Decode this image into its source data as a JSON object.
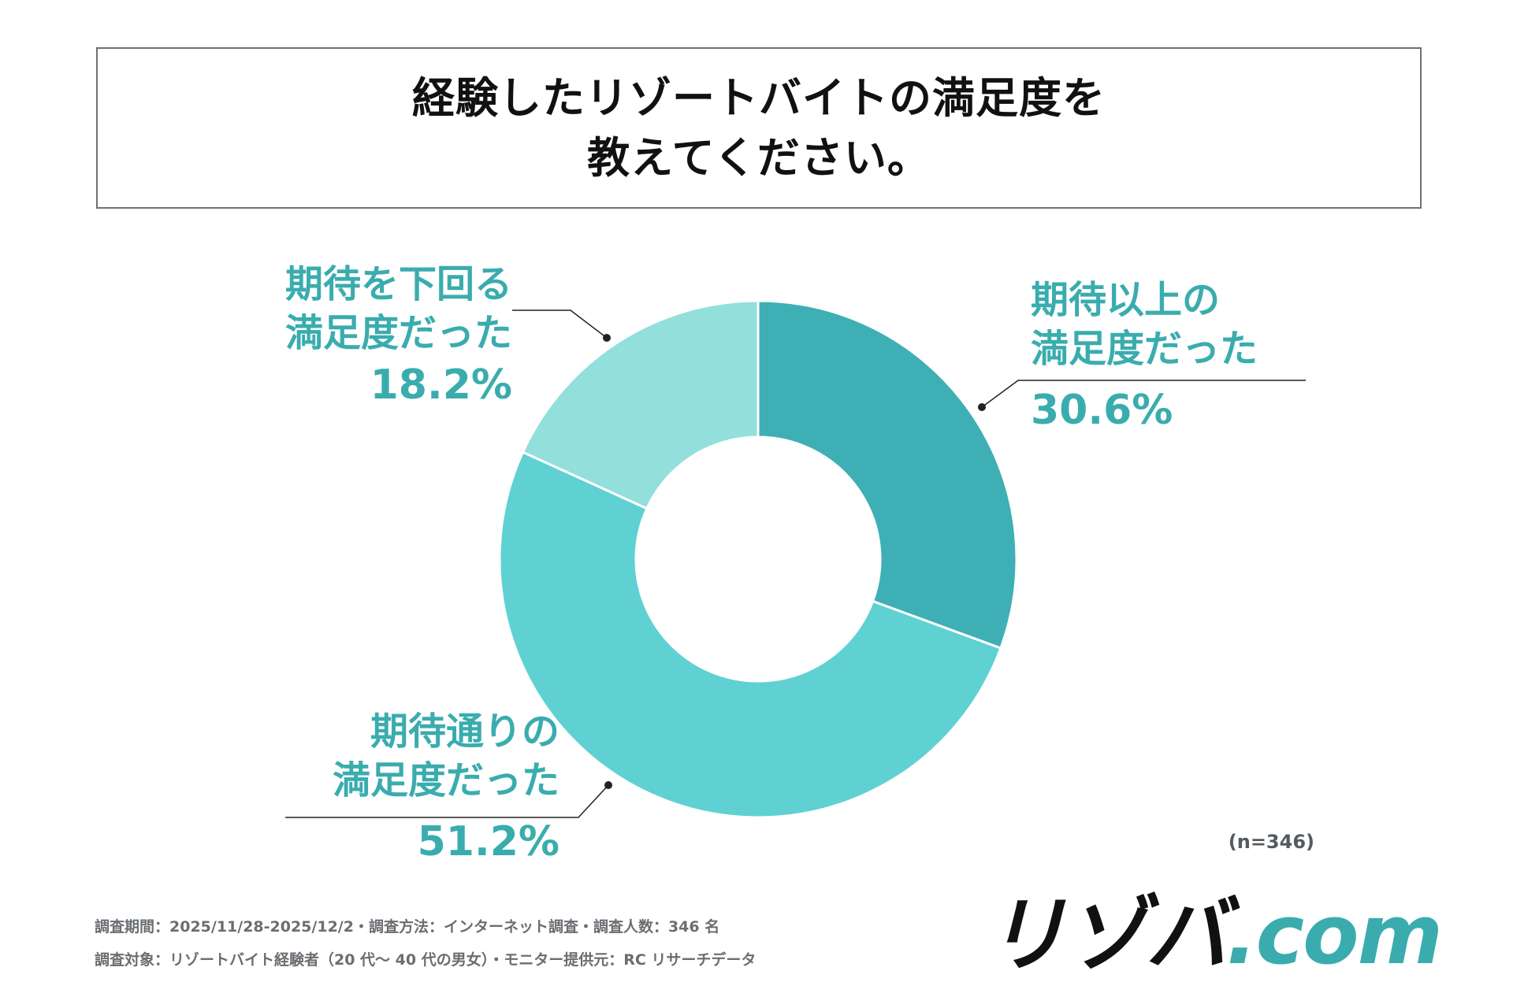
{
  "title_lines": [
    "経験したリゾートバイトの満足度を",
    "教えてください。"
  ],
  "chart_data": {
    "type": "pie",
    "variant": "donut",
    "slices": [
      {
        "label_lines": [
          "期待以上の",
          "満足度だった"
        ],
        "value": 30.6,
        "value_label": "30.6%",
        "color": "#3fafb6"
      },
      {
        "label_lines": [
          "期待通りの",
          "満足度だった"
        ],
        "value": 51.2,
        "value_label": "51.2%",
        "color": "#5fd1d2"
      },
      {
        "label_lines": [
          "期待を下回る",
          "満足度だった"
        ],
        "value": 18.2,
        "value_label": "18.2%",
        "color": "#93dfdb"
      }
    ],
    "sample_size": "(n=346)"
  },
  "footer": {
    "line1": "調査期間：2025/11/28-2025/12/2・調査方法：インターネット調査・調査人数：346 名",
    "line2": "調査対象：リゾートバイト経験者（20 代～ 40 代の男女）・モニター提供元：RC リサーチデータ"
  },
  "logo": {
    "main": "リゾバ",
    "domain": ".com"
  },
  "colors": {
    "accent": "#3aacae"
  }
}
